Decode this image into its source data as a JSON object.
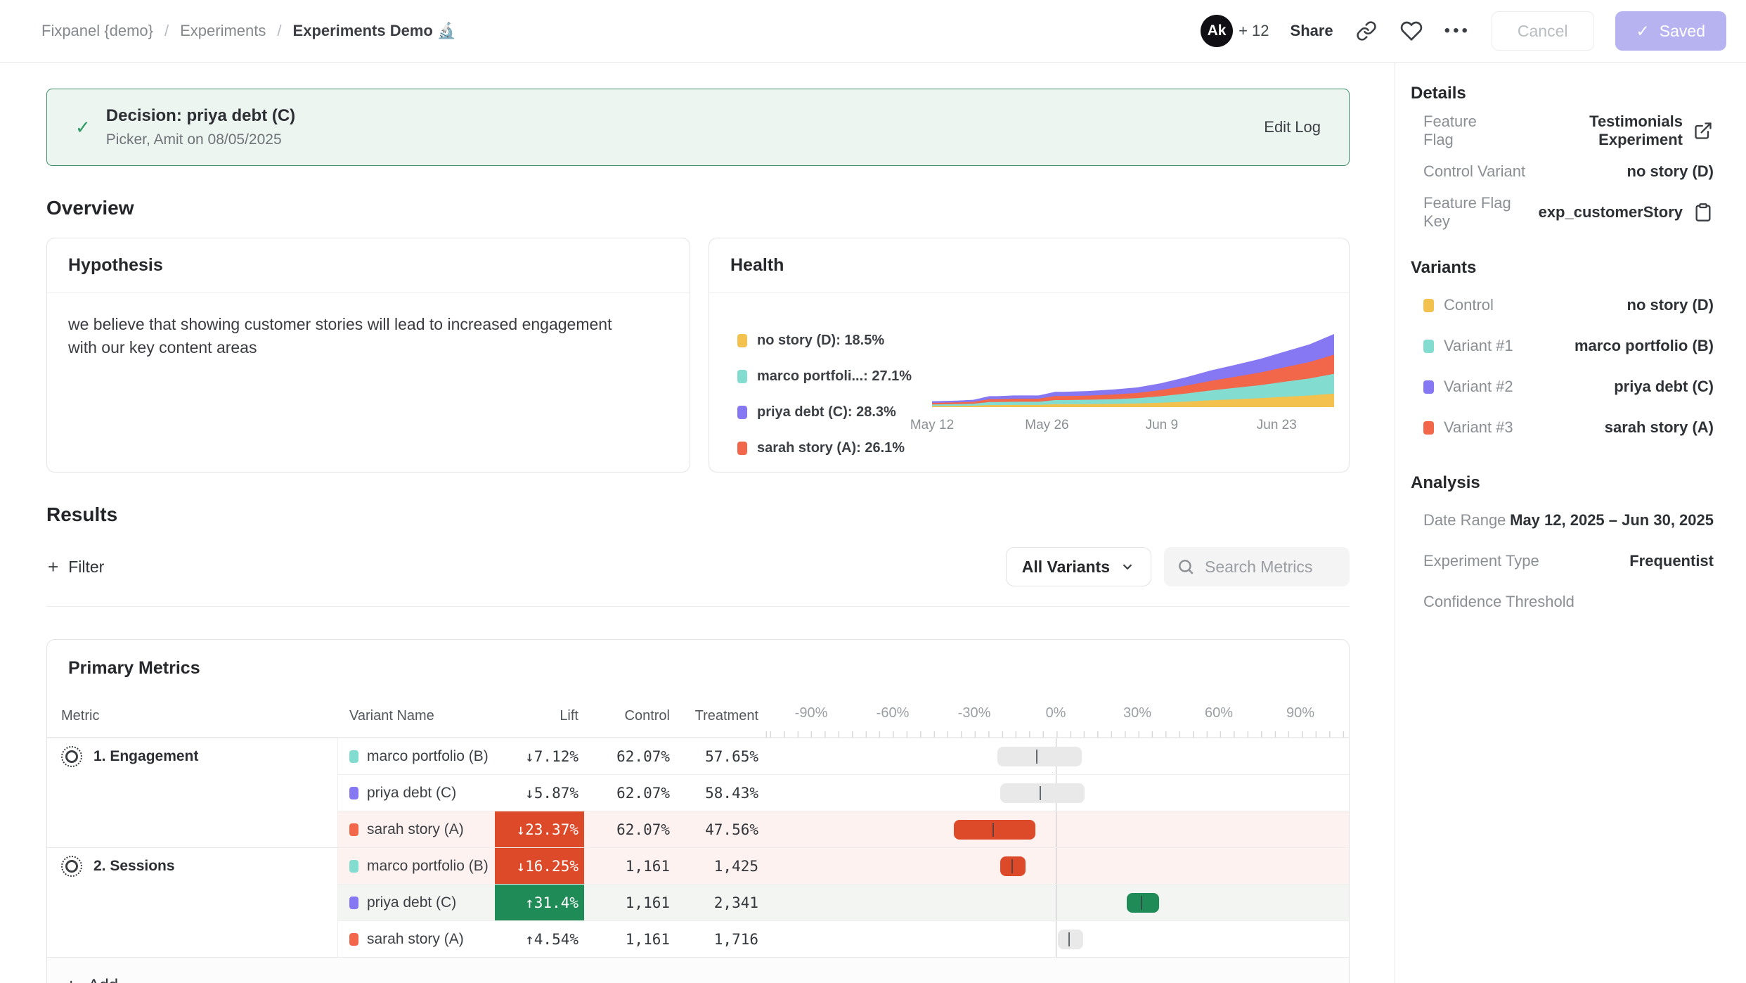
{
  "header": {
    "breadcrumb": [
      "Fixpanel {demo}",
      "Experiments",
      "Experiments Demo 🔬"
    ],
    "separator": "/",
    "avatar_initials": "Ak",
    "avatar_overflow": "+ 12",
    "share_label": "Share",
    "cancel_label": "Cancel",
    "saved_label": "Saved",
    "saved_check": "✓",
    "saved_color": "#b7b3f1"
  },
  "banner": {
    "check": "✓",
    "title": "Decision: priya debt (C)",
    "subtitle": "Picker, Amit on 08/05/2025",
    "action": "Edit Log",
    "bg": "#ecf5f0",
    "border": "#3f8f68"
  },
  "overview": {
    "heading": "Overview",
    "hypothesis": {
      "title": "Hypothesis",
      "body": "we believe that showing customer stories will lead to increased engagement with our key content areas"
    },
    "health": {
      "title": "Health",
      "legend": [
        {
          "label": "no story (D): 18.5%",
          "color": "#f2c14e"
        },
        {
          "label": "marco portfoli...: 27.1%",
          "color": "#82dcd0"
        },
        {
          "label": "priya debt (C): 28.3%",
          "color": "#8677f2"
        },
        {
          "label": "sarah story (A): 26.1%",
          "color": "#f2674a"
        }
      ]
    }
  },
  "chart_data": {
    "type": "area",
    "stacked": true,
    "title": "Health",
    "x_unit": "days since May 12, 2025",
    "x": [
      0,
      3,
      5,
      7,
      8,
      10,
      13,
      15,
      16,
      19,
      22,
      25,
      28,
      31,
      34,
      37,
      40,
      43,
      46,
      49
    ],
    "x_tick_labels": [
      "May 12",
      "May 26",
      "Jun 9",
      "Jun 23"
    ],
    "x_tick_days": [
      0,
      14,
      28,
      42
    ],
    "x_range_days": [
      0,
      49
    ],
    "ylim": [
      0,
      100
    ],
    "grid": false,
    "legend_position": "left",
    "series": [
      {
        "name": "no story (D)",
        "share_pct": 18.5,
        "color": "#f2c14e",
        "values": [
          1.5,
          1.7,
          1.9,
          2.8,
          2.8,
          3.0,
          3.0,
          3.9,
          3.9,
          4.1,
          4.4,
          5.0,
          6.1,
          7.6,
          9.3,
          10.7,
          12.2,
          14.1,
          15.9,
          18.5
        ]
      },
      {
        "name": "marco portfolio (B)",
        "share_pct": 27.1,
        "color": "#82dcd0",
        "values": [
          2.2,
          2.4,
          2.7,
          4.1,
          4.1,
          4.3,
          4.3,
          5.7,
          5.7,
          6.0,
          6.5,
          7.3,
          8.9,
          11.1,
          13.6,
          15.7,
          17.9,
          20.6,
          23.3,
          27.1
        ]
      },
      {
        "name": "sarah story (A)",
        "share_pct": 26.1,
        "color": "#f2674a",
        "values": [
          2.1,
          2.3,
          2.6,
          3.9,
          3.9,
          4.2,
          4.2,
          5.5,
          5.5,
          5.7,
          6.3,
          7.0,
          8.6,
          10.7,
          13.1,
          15.1,
          17.2,
          19.8,
          22.4,
          26.1
        ]
      },
      {
        "name": "priya debt (C)",
        "share_pct": 28.3,
        "color": "#8677f2",
        "values": [
          2.3,
          2.5,
          2.8,
          4.2,
          4.2,
          4.5,
          4.5,
          5.9,
          5.9,
          6.2,
          6.8,
          7.6,
          9.3,
          11.6,
          14.2,
          16.4,
          18.7,
          21.5,
          24.3,
          28.3
        ]
      }
    ]
  },
  "results": {
    "heading": "Results",
    "filter_label": "Filter",
    "variant_filter": "All Variants",
    "search_placeholder": "Search Metrics"
  },
  "primary_metrics": {
    "title": "Primary Metrics",
    "columns": {
      "metric": "Metric",
      "variant": "Variant Name",
      "lift": "Lift",
      "control": "Control",
      "treatment": "Treatment"
    },
    "axis_ticks": [
      {
        "label": "-90%",
        "value": -90
      },
      {
        "label": "-60%",
        "value": -60
      },
      {
        "label": "-30%",
        "value": -30
      },
      {
        "label": "0%",
        "value": 0
      },
      {
        "label": "30%",
        "value": 30
      },
      {
        "label": "60%",
        "value": 60
      },
      {
        "label": "90%",
        "value": 90
      }
    ],
    "add_label": "Add",
    "rows": [
      {
        "metric": "1. Engagement",
        "variant": "marco portfolio (B)",
        "variant_color": "#82dcd0",
        "lift": "↓7.12%",
        "lift_value": -7.12,
        "lift_style": "plain",
        "control": "62.07%",
        "treatment": "57.65%",
        "ci": [
          -21.5,
          9.5
        ],
        "bar_color": "gray",
        "row_bg": "none"
      },
      {
        "metric": "",
        "variant": "priya debt (C)",
        "variant_color": "#8677f2",
        "lift": "↓5.87%",
        "lift_value": -5.87,
        "lift_style": "plain",
        "control": "62.07%",
        "treatment": "58.43%",
        "ci": [
          -20.5,
          10.5
        ],
        "bar_color": "gray",
        "row_bg": "none"
      },
      {
        "metric": "",
        "variant": "sarah story (A)",
        "variant_color": "#f2674a",
        "lift": "↓23.37%",
        "lift_value": -23.37,
        "lift_style": "negative",
        "control": "62.07%",
        "treatment": "47.56%",
        "ci": [
          -37.5,
          -7.5
        ],
        "bar_color": "red",
        "row_bg": "pink"
      },
      {
        "metric": "2. Sessions",
        "variant": "marco portfolio (B)",
        "variant_color": "#82dcd0",
        "lift": "↓16.25%",
        "lift_value": -16.25,
        "lift_style": "negative",
        "control": "1,161",
        "treatment": "1,425",
        "ci": [
          -20.5,
          -11
        ],
        "bar_color": "red",
        "row_bg": "pink"
      },
      {
        "metric": "",
        "variant": "priya debt (C)",
        "variant_color": "#8677f2",
        "lift": "↑31.4%",
        "lift_value": 31.4,
        "lift_style": "positive",
        "control": "1,161",
        "treatment": "2,341",
        "ci": [
          26,
          38
        ],
        "bar_color": "green",
        "row_bg": "gray"
      },
      {
        "metric": "",
        "variant": "sarah story (A)",
        "variant_color": "#f2674a",
        "lift": "↑4.54%",
        "lift_value": 4.54,
        "lift_style": "plain",
        "control": "1,161",
        "treatment": "1,716",
        "ci": [
          0.8,
          10.2
        ],
        "bar_color": "gray",
        "row_bg": "none"
      }
    ]
  },
  "sidebar": {
    "details": {
      "heading": "Details",
      "rows": [
        {
          "label": "Feature Flag",
          "value": "Testimonials Experiment",
          "icon": "external-link"
        },
        {
          "label": "Control Variant",
          "value": "no story (D)"
        },
        {
          "label": "Feature Flag Key",
          "value": "exp_customerStory",
          "icon": "clipboard"
        }
      ]
    },
    "variants": {
      "heading": "Variants",
      "rows": [
        {
          "label": "Control",
          "value": "no story (D)",
          "color": "#f2c14e"
        },
        {
          "label": "Variant #1",
          "value": "marco portfolio (B)",
          "color": "#82dcd0"
        },
        {
          "label": "Variant #2",
          "value": "priya debt (C)",
          "color": "#8677f2"
        },
        {
          "label": "Variant #3",
          "value": "sarah story (A)",
          "color": "#f2674a"
        }
      ]
    },
    "analysis": {
      "heading": "Analysis",
      "rows": [
        {
          "label": "Date Range",
          "value": "May 12, 2025 – Jun 30, 2025"
        },
        {
          "label": "Experiment Type",
          "value": "Frequentist"
        },
        {
          "label": "Confidence Threshold",
          "value": ""
        }
      ]
    }
  }
}
